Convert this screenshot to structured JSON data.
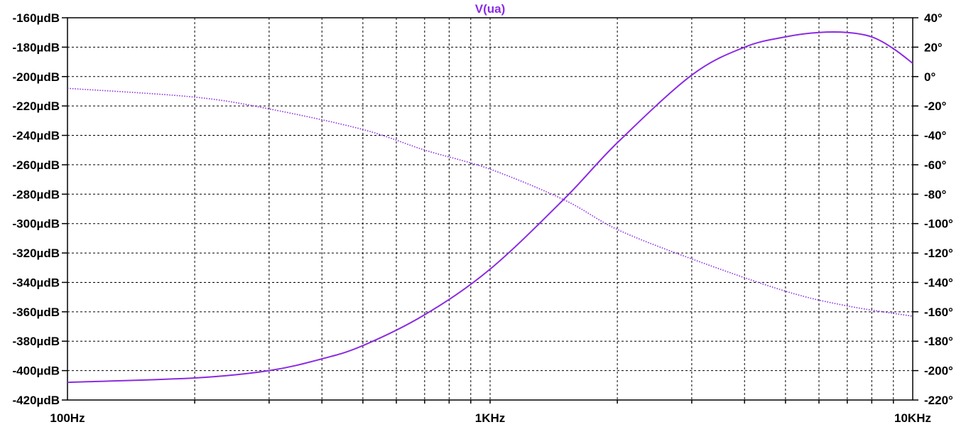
{
  "chart_data": {
    "type": "line",
    "title": "V(ua)",
    "x_scale": "log",
    "x_range_hz": [
      100,
      10000
    ],
    "x_ticks": [
      {
        "value": 100,
        "label": "100Hz"
      },
      {
        "value": 1000,
        "label": "1KHz"
      },
      {
        "value": 10000,
        "label": "10KHz"
      }
    ],
    "y_left": {
      "unit": "µdB",
      "range": [
        -420,
        -160
      ],
      "tick_labels": [
        "-160µdB",
        "-180µdB",
        "-200µdB",
        "-220µdB",
        "-240µdB",
        "-260µdB",
        "-280µdB",
        "-300µdB",
        "-320µdB",
        "-340µdB",
        "-360µdB",
        "-380µdB",
        "-400µdB",
        "-420µdB"
      ],
      "tick_values": [
        -160,
        -180,
        -200,
        -220,
        -240,
        -260,
        -280,
        -300,
        -320,
        -340,
        -360,
        -380,
        -400,
        -420
      ]
    },
    "y_right": {
      "unit": "°",
      "range": [
        -220,
        40
      ],
      "tick_labels": [
        "40°",
        "20°",
        "0°",
        "-20°",
        "-40°",
        "-60°",
        "-80°",
        "-100°",
        "-120°",
        "-140°",
        "-160°",
        "-180°",
        "-200°",
        "-220°"
      ],
      "tick_values": [
        40,
        20,
        0,
        -20,
        -40,
        -60,
        -80,
        -100,
        -120,
        -140,
        -160,
        -180,
        -200,
        -220
      ]
    },
    "grid": true,
    "color": "#8a2be2",
    "series": [
      {
        "axis": "left",
        "style": "solid",
        "x": [
          100,
          200,
          300,
          400,
          500,
          700,
          1000,
          1500,
          2000,
          3000,
          4000,
          5000,
          6000,
          7000,
          8000,
          9000,
          10000
        ],
        "y": [
          -408,
          -405,
          -400,
          -392,
          -383,
          -362,
          -331,
          -283,
          -245,
          -199,
          -180,
          -173,
          -170,
          -170,
          -173,
          -181,
          -191
        ]
      },
      {
        "axis": "right",
        "style": "dotted",
        "x": [
          100,
          200,
          300,
          500,
          700,
          1000,
          1500,
          2000,
          3000,
          5000,
          7000,
          10000
        ],
        "y": [
          -8,
          -14,
          -22,
          -36,
          -50,
          -63,
          -84,
          -104,
          -124,
          -146,
          -156,
          -163
        ]
      }
    ]
  }
}
